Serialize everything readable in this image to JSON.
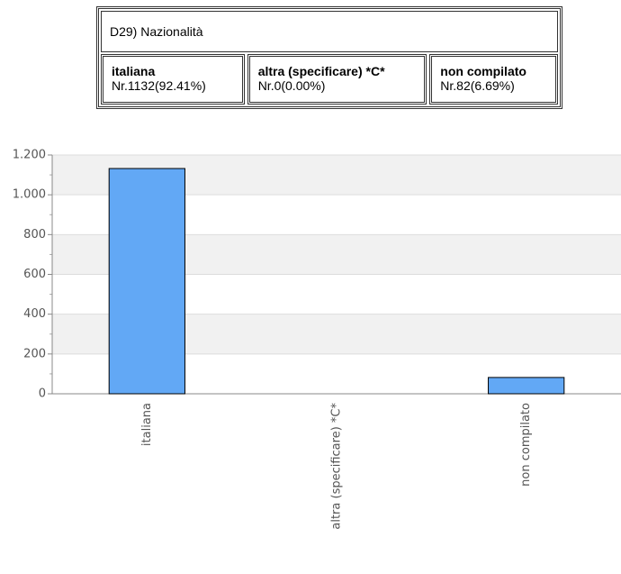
{
  "table": {
    "title": "D29) Nazionalità",
    "cells": [
      {
        "name": "italiana",
        "text": "Nr.1132(92.41%)"
      },
      {
        "name": "altra (specificare) *C*",
        "text": "Nr.0(0.00%)"
      },
      {
        "name": "non compilato",
        "text": "Nr.82(6.69%)"
      }
    ]
  },
  "chart_data": {
    "type": "bar",
    "categories": [
      "italiana",
      "altra (specificare) *C*",
      "non compilato"
    ],
    "values": [
      1132,
      0,
      82
    ],
    "color": "#62a8f5",
    "ylim": [
      0,
      1200
    ],
    "yticks": [
      0,
      200,
      400,
      600,
      800,
      {
        "value": 1000,
        "label": "1.000"
      },
      {
        "value": 1200,
        "label": "1.200"
      }
    ],
    "grid": true
  }
}
